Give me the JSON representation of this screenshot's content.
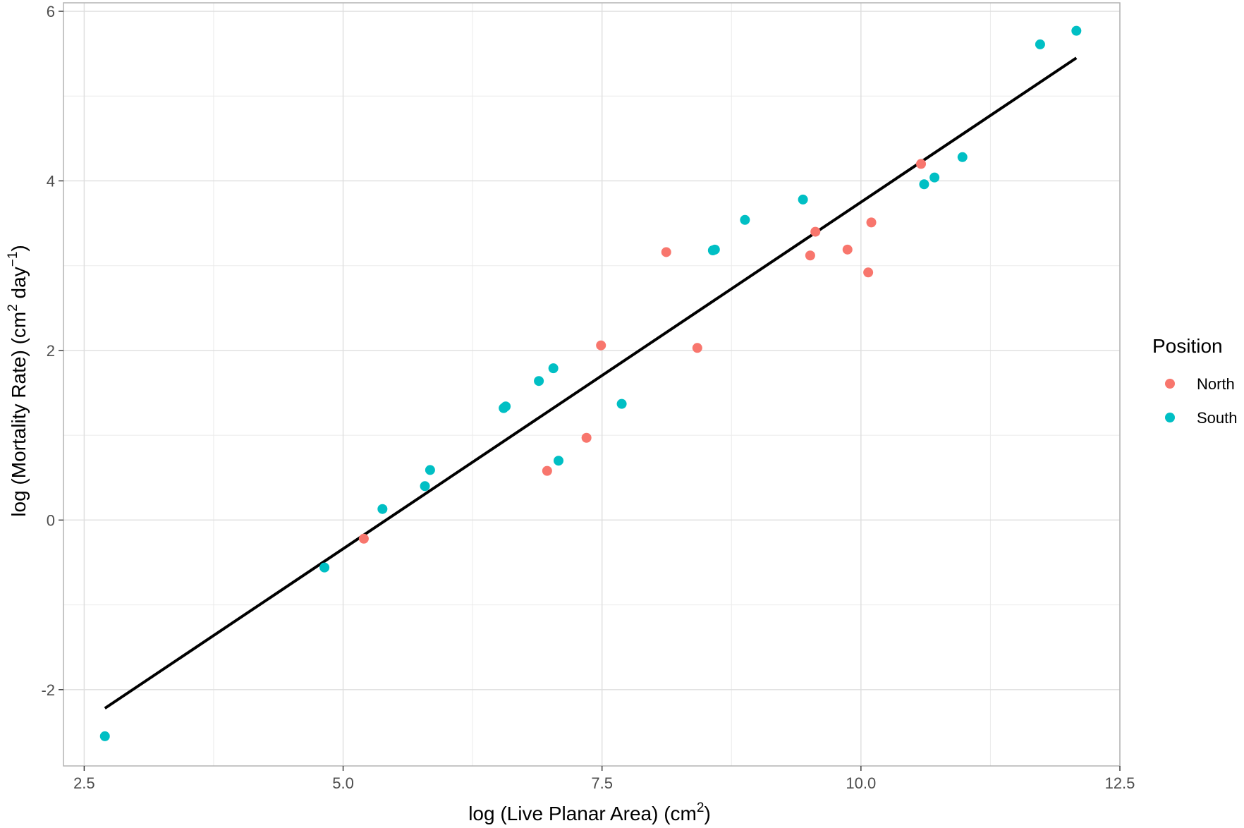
{
  "chart_data": {
    "type": "scatter",
    "xlabel": {
      "main": "log (Live Planar Area) (cm",
      "sup": "2",
      "tail": ")"
    },
    "ylabel": {
      "main": "log (Mortality Rate) (cm",
      "sup1": "2",
      "mid": " day",
      "sup2": "−1",
      "tail": ")"
    },
    "xlim": [
      2.3,
      12.5
    ],
    "ylim": [
      -2.9,
      6.1
    ],
    "x_ticks": [
      2.5,
      5.0,
      7.5,
      10.0,
      12.5
    ],
    "x_tick_labels": [
      "2.5",
      "5.0",
      "7.5",
      "10.0",
      "12.5"
    ],
    "y_ticks": [
      -2,
      0,
      2,
      4,
      6
    ],
    "y_tick_labels": [
      "-2",
      "0",
      "2",
      "4",
      "6"
    ],
    "grid": true,
    "legend": {
      "title": "Position",
      "placement": "right",
      "entries": [
        {
          "label": "North",
          "color": "#F8766D"
        },
        {
          "label": "South",
          "color": "#00BFC4"
        }
      ]
    },
    "series": [
      {
        "name": "North",
        "color": "#F8766D",
        "points": [
          [
            5.2,
            -0.22
          ],
          [
            6.97,
            0.58
          ],
          [
            7.35,
            0.97
          ],
          [
            7.49,
            2.06
          ],
          [
            8.12,
            3.16
          ],
          [
            8.42,
            2.03
          ],
          [
            9.51,
            3.12
          ],
          [
            9.56,
            3.4
          ],
          [
            9.87,
            3.19
          ],
          [
            10.07,
            2.92
          ],
          [
            10.1,
            3.51
          ],
          [
            10.58,
            4.2
          ]
        ]
      },
      {
        "name": "South",
        "color": "#00BFC4",
        "points": [
          [
            2.7,
            -2.55
          ],
          [
            4.82,
            -0.56
          ],
          [
            5.38,
            0.13
          ],
          [
            5.79,
            0.4
          ],
          [
            5.84,
            0.59
          ],
          [
            6.55,
            1.32
          ],
          [
            6.57,
            1.34
          ],
          [
            6.89,
            1.64
          ],
          [
            7.03,
            1.79
          ],
          [
            7.08,
            0.7
          ],
          [
            7.69,
            1.37
          ],
          [
            8.57,
            3.18
          ],
          [
            8.59,
            3.19
          ],
          [
            8.88,
            3.54
          ],
          [
            9.44,
            3.78
          ],
          [
            10.61,
            3.96
          ],
          [
            10.71,
            4.04
          ],
          [
            10.98,
            4.28
          ],
          [
            11.73,
            5.61
          ],
          [
            12.08,
            5.77
          ]
        ]
      }
    ],
    "fit_line": {
      "color": "#000000",
      "x": [
        2.7,
        12.08
      ],
      "y": [
        -2.22,
        5.45
      ]
    }
  }
}
